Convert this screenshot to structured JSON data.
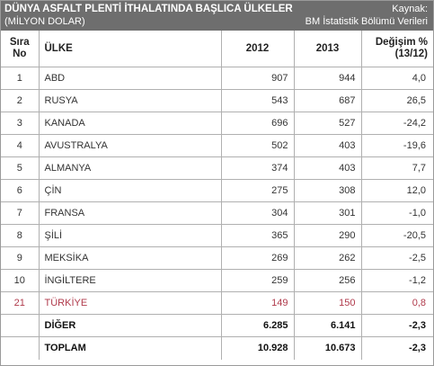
{
  "header": {
    "title": "DÜNYA ASFALT PLENTİ İTHALATINDA BAŞLICA ÜLKELER",
    "subtitle": "(MİLYON DOLAR)",
    "source_label": "Kaynak:",
    "source_value": "BM İstatistik Bölümü Verileri"
  },
  "columns": {
    "rank_line1": "Sıra",
    "rank_line2": "No",
    "country": "ÜLKE",
    "year1": "2012",
    "year2": "2013",
    "change_line1": "Değişim %",
    "change_line2": "(13/12)"
  },
  "rows": [
    {
      "rank": "1",
      "country": "ABD",
      "y2012": "907",
      "y2013": "944",
      "change": "4,0"
    },
    {
      "rank": "2",
      "country": "RUSYA",
      "y2012": "543",
      "y2013": "687",
      "change": "26,5"
    },
    {
      "rank": "3",
      "country": "KANADA",
      "y2012": "696",
      "y2013": "527",
      "change": "-24,2"
    },
    {
      "rank": "4",
      "country": "AVUSTRALYA",
      "y2012": "502",
      "y2013": "403",
      "change": "-19,6"
    },
    {
      "rank": "5",
      "country": "ALMANYA",
      "y2012": "374",
      "y2013": "403",
      "change": "7,7"
    },
    {
      "rank": "6",
      "country": "ÇİN",
      "y2012": "275",
      "y2013": "308",
      "change": "12,0"
    },
    {
      "rank": "7",
      "country": "FRANSA",
      "y2012": "304",
      "y2013": "301",
      "change": "-1,0"
    },
    {
      "rank": "8",
      "country": "ŞİLİ",
      "y2012": "365",
      "y2013": "290",
      "change": "-20,5"
    },
    {
      "rank": "9",
      "country": "MEKSİKA",
      "y2012": "269",
      "y2013": "262",
      "change": "-2,5"
    },
    {
      "rank": "10",
      "country": "İNGİLTERE",
      "y2012": "259",
      "y2013": "256",
      "change": "-1,2"
    },
    {
      "rank": "21",
      "country": "TÜRKİYE",
      "y2012": "149",
      "y2013": "150",
      "change": "0,8"
    }
  ],
  "other": {
    "label": "DİĞER",
    "y2012": "6.285",
    "y2013": "6.141",
    "change": "-2,3"
  },
  "total": {
    "label": "TOPLAM",
    "y2012": "10.928",
    "y2013": "10.673",
    "change": "-2,3"
  },
  "colors": {
    "header_bg": "#6e6e6e",
    "highlight_text": "#b03a4b",
    "grid": "#b0b0b0"
  }
}
